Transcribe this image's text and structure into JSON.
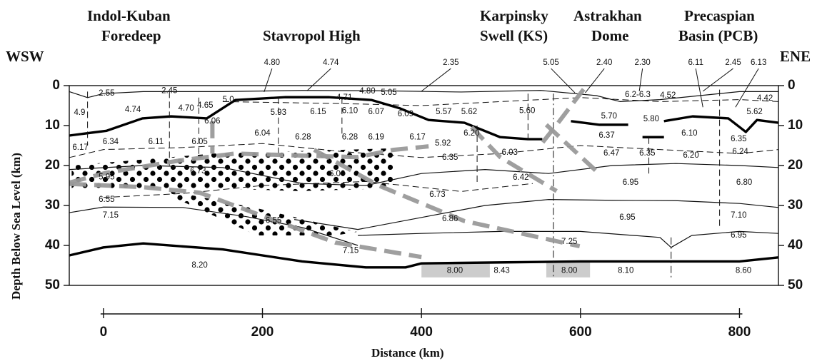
{
  "chart_data": {
    "type": "cross-section",
    "x_label": "Distance (km)",
    "y_label": "Depth Below Sea Level (km)",
    "left_label": "WSW",
    "right_label": "ENE",
    "regions": [
      {
        "lines": [
          "Indol-Kuban",
          "Foredeep"
        ]
      },
      {
        "lines": [
          "Stavropol High"
        ]
      },
      {
        "lines": [
          "Karpinsky",
          "Swell (KS)"
        ]
      },
      {
        "lines": [
          "Astrakhan",
          "Dome"
        ]
      },
      {
        "lines": [
          "Precaspian",
          "Basin (PCB)"
        ]
      }
    ],
    "xlim": [
      -43,
      849
    ],
    "ylim": [
      0,
      50
    ],
    "xticks": [
      0,
      200,
      400,
      600,
      800
    ],
    "yticks": [
      0,
      10,
      20,
      30,
      40,
      50
    ],
    "y_inverted": true,
    "right_axis": true,
    "velocity_labels": [
      {
        "text": "2.55",
        "x": 4,
        "y": 2.0
      },
      {
        "text": "2.45",
        "x": 83,
        "y": 1.3
      },
      {
        "text": "4.80",
        "x": 332,
        "y": 1.4
      },
      {
        "text": "4.71",
        "x": 303,
        "y": 3.0
      },
      {
        "text": "5.05",
        "x": 359,
        "y": 1.8
      },
      {
        "text": "6.2-6.3",
        "x": 672,
        "y": 2.3
      },
      {
        "text": "4.52",
        "x": 710,
        "y": 2.5
      },
      {
        "text": "4.42",
        "x": 832,
        "y": 3.2
      },
      {
        "text": "4.9",
        "x": -30,
        "y": 6.8
      },
      {
        "text": "4.74",
        "x": 37,
        "y": 6.1
      },
      {
        "text": "4.70",
        "x": 104,
        "y": 5.7
      },
      {
        "text": "4.65",
        "x": 128,
        "y": 5.0
      },
      {
        "text": "5.0",
        "x": 157,
        "y": 3.6
      },
      {
        "text": "5.93",
        "x": 220,
        "y": 6.8
      },
      {
        "text": "6.15",
        "x": 270,
        "y": 6.6
      },
      {
        "text": "6.10",
        "x": 310,
        "y": 6.3
      },
      {
        "text": "6.07",
        "x": 343,
        "y": 6.6
      },
      {
        "text": "6.09",
        "x": 380,
        "y": 7.1
      },
      {
        "text": "5.57",
        "x": 428,
        "y": 6.6
      },
      {
        "text": "5.62",
        "x": 460,
        "y": 6.6
      },
      {
        "text": "5.60",
        "x": 533,
        "y": 6.3
      },
      {
        "text": "5.70",
        "x": 636,
        "y": 7.7
      },
      {
        "text": "5.80",
        "x": 689,
        "y": 8.4
      },
      {
        "text": "5.62",
        "x": 819,
        "y": 6.6
      },
      {
        "text": "6.06",
        "x": 137,
        "y": 8.9
      },
      {
        "text": "6.17",
        "x": -29,
        "y": 15.5
      },
      {
        "text": "6.34",
        "x": 9,
        "y": 14.1
      },
      {
        "text": "6.11",
        "x": 66,
        "y": 14.1
      },
      {
        "text": "6.05",
        "x": 121,
        "y": 14.1
      },
      {
        "text": "6.04",
        "x": 200,
        "y": 12.0
      },
      {
        "text": "6.28",
        "x": 251,
        "y": 12.9
      },
      {
        "text": "6.28",
        "x": 310,
        "y": 12.9
      },
      {
        "text": "6.19",
        "x": 343,
        "y": 12.9
      },
      {
        "text": "6.17",
        "x": 395,
        "y": 12.9
      },
      {
        "text": "5.92",
        "x": 427,
        "y": 14.5
      },
      {
        "text": "6.20",
        "x": 463,
        "y": 12.0
      },
      {
        "text": "6.03",
        "x": 511,
        "y": 16.8
      },
      {
        "text": "6.35",
        "x": 436,
        "y": 18.0
      },
      {
        "text": "6.37",
        "x": 633,
        "y": 12.5
      },
      {
        "text": "6.10",
        "x": 737,
        "y": 12.0
      },
      {
        "text": "6.35",
        "x": 799,
        "y": 13.4
      },
      {
        "text": "6.24",
        "x": 801,
        "y": 16.6
      },
      {
        "text": "6.47",
        "x": 639,
        "y": 17.0
      },
      {
        "text": "6.35",
        "x": 684,
        "y": 17.0
      },
      {
        "text": "6.20",
        "x": 739,
        "y": 17.5
      },
      {
        "text": "5.95",
        "x": 4,
        "y": 22.9
      },
      {
        "text": "6.73",
        "x": 119,
        "y": 21.4
      },
      {
        "text": "6.00",
        "x": 294,
        "y": 22.1
      },
      {
        "text": "6.42",
        "x": 525,
        "y": 23.0
      },
      {
        "text": "6.95",
        "x": 663,
        "y": 24.3
      },
      {
        "text": "6.80",
        "x": 806,
        "y": 24.3
      },
      {
        "text": "6.73",
        "x": 420,
        "y": 27.3
      },
      {
        "text": "6.55",
        "x": 4,
        "y": 28.6
      },
      {
        "text": "7.15",
        "x": 9,
        "y": 32.5
      },
      {
        "text": "6.55",
        "x": 214,
        "y": 33.8
      },
      {
        "text": "6.86",
        "x": 436,
        "y": 33.4
      },
      {
        "text": "6.95",
        "x": 659,
        "y": 33.0
      },
      {
        "text": "7.10",
        "x": 799,
        "y": 32.5
      },
      {
        "text": "6.95",
        "x": 799,
        "y": 37.5
      },
      {
        "text": "7.25",
        "x": 586,
        "y": 39.1
      },
      {
        "text": "7.15",
        "x": 311,
        "y": 41.3
      },
      {
        "text": "8.20",
        "x": 121,
        "y": 45.0
      },
      {
        "text": "8.00",
        "x": 442,
        "y": 46.3
      },
      {
        "text": "8.43",
        "x": 501,
        "y": 46.3
      },
      {
        "text": "8.00",
        "x": 586,
        "y": 46.3
      },
      {
        "text": "8.10",
        "x": 657,
        "y": 46.3
      },
      {
        "text": "8.60",
        "x": 805,
        "y": 46.3
      }
    ],
    "callouts": [
      {
        "text": "4.80",
        "x": 212,
        "y": -5.7,
        "to_x": 202,
        "to_y": 1.6
      },
      {
        "text": "4.74",
        "x": 286,
        "y": -5.7,
        "to_x": 256,
        "to_y": 1.3
      },
      {
        "text": "2.35",
        "x": 437,
        "y": -5.7,
        "to_x": 400,
        "to_y": 1.4
      },
      {
        "text": "5.05",
        "x": 563,
        "y": -5.7,
        "to_x": 593,
        "to_y": 1.8
      },
      {
        "text": "2.40",
        "x": 630,
        "y": -5.7,
        "to_x": 606,
        "to_y": 1.8
      },
      {
        "text": "2.30",
        "x": 678,
        "y": -5.7,
        "to_x": 674,
        "to_y": 1.4
      },
      {
        "text": "6.11",
        "x": 745,
        "y": -5.7,
        "to_x": 754,
        "to_y": 5.4
      },
      {
        "text": "2.45",
        "x": 792,
        "y": -5.7,
        "to_x": 754,
        "to_y": 1.4
      },
      {
        "text": "6.13",
        "x": 824,
        "y": -5.7,
        "to_x": 795,
        "to_y": 5.4
      }
    ],
    "boundaries": [
      {
        "style": "thin",
        "x": [
          -43,
          -20,
          0,
          50,
          150,
          250,
          350,
          450,
          550,
          620,
          650,
          700,
          800,
          849
        ],
        "y": [
          1.5,
          3,
          2,
          1.5,
          1.5,
          1.2,
          1.3,
          1.6,
          1.2,
          2.5,
          4,
          3.5,
          1.5,
          1.5
        ]
      },
      {
        "style": "dashed",
        "x": [
          150,
          300,
          400,
          500,
          600,
          700,
          800,
          849
        ],
        "y": [
          4,
          4.5,
          5,
          4,
          3,
          4,
          3.5,
          4
        ]
      },
      {
        "style": "thick",
        "x": [
          -43,
          4,
          49,
          85,
          130,
          166,
          229,
          283,
          337,
          373,
          409,
          454,
          499,
          534,
          552,
          null,
          588,
          624,
          660,
          null,
          678,
          705,
          null,
          705,
          741,
          786,
          808,
          822,
          849
        ],
        "y": [
          12.5,
          11.3,
          8.2,
          7.7,
          8.2,
          3.6,
          2.9,
          2.9,
          3.6,
          5.7,
          8.6,
          9.3,
          12.9,
          13.4,
          13.4,
          null,
          8.9,
          9.8,
          9.8,
          null,
          12.9,
          12.9,
          null,
          8.9,
          7.7,
          8.2,
          11.6,
          8.6,
          9.3
        ]
      },
      {
        "style": "dashed",
        "x": [
          -43,
          0,
          100,
          200,
          300,
          400,
          500,
          600,
          700,
          800,
          849
        ],
        "y": [
          18,
          16,
          15.5,
          14.5,
          16.5,
          18,
          17,
          15,
          16,
          17,
          16
        ]
      },
      {
        "style": "thin",
        "x": [
          -43,
          50,
          150,
          250,
          330,
          400,
          480,
          560,
          640,
          720,
          800,
          849
        ],
        "y": [
          21,
          20,
          20.5,
          24.5,
          25,
          22,
          21,
          22,
          20,
          19.5,
          20,
          20.5
        ]
      },
      {
        "style": "dashed",
        "x": [
          0,
          100,
          200,
          330,
          450,
          540
        ],
        "y": [
          28,
          27,
          25,
          24,
          26.5,
          24.5
        ]
      },
      {
        "style": "thin",
        "x": [
          -43,
          0,
          100,
          180,
          250,
          320
        ],
        "y": [
          31.8,
          30.4,
          30.5,
          32.8,
          35.5,
          40
        ]
      },
      {
        "style": "thin",
        "x": [
          240,
          320,
          400,
          480,
          560,
          640,
          720,
          800,
          849
        ],
        "y": [
          33.5,
          36,
          33,
          30,
          28.5,
          28.7,
          28.8,
          29.5,
          30.5
        ]
      },
      {
        "style": "thin",
        "x": [
          320,
          400,
          500,
          600,
          700,
          714,
          740,
          800,
          849
        ],
        "y": [
          37.5,
          37,
          36.5,
          36.5,
          38,
          40.5,
          37.5,
          36.5,
          37
        ]
      },
      {
        "style": "thick",
        "x": [
          -43,
          0,
          50,
          150,
          250,
          330,
          380,
          400,
          600,
          800,
          849
        ],
        "y": [
          42.5,
          40.5,
          39.5,
          41,
          44,
          45.5,
          45.5,
          44.5,
          44,
          44,
          43
        ]
      },
      {
        "style": "dashed",
        "x": [
          -20,
          -20
        ],
        "y": [
          1.5,
          15
        ]
      },
      {
        "style": "dashed",
        "x": [
          83,
          83
        ],
        "y": [
          1.5,
          20
        ]
      },
      {
        "style": "dashed",
        "x": [
          120,
          120
        ],
        "y": [
          3,
          18
        ]
      },
      {
        "style": "dashed",
        "x": [
          220,
          220
        ],
        "y": [
          3,
          17
        ]
      },
      {
        "style": "dashed",
        "x": [
          300,
          300
        ],
        "y": [
          3,
          12
        ]
      },
      {
        "style": "dashed",
        "x": [
          470,
          470
        ],
        "y": [
          10,
          25
        ]
      },
      {
        "style": "dashed",
        "x": [
          534,
          534
        ],
        "y": [
          2,
          14
        ]
      },
      {
        "style": "dashdot",
        "x": [
          566,
          566
        ],
        "y": [
          2,
          48
        ]
      },
      {
        "style": "dashed",
        "x": [
          686,
          686
        ],
        "y": [
          13,
          22
        ]
      },
      {
        "style": "dashdot",
        "x": [
          714,
          714
        ],
        "y": [
          38,
          48
        ]
      },
      {
        "style": "dashed",
        "x": [
          775,
          775
        ],
        "y": [
          1,
          36
        ]
      },
      {
        "style": "gray",
        "x": [
          -43,
          4,
          94,
          166,
          247,
          319,
          364,
          409
        ],
        "y": [
          24.3,
          21.8,
          18.8,
          17,
          17.5,
          17.9,
          16.1,
          15.2
        ]
      },
      {
        "style": "gray",
        "x": [
          -43,
          49,
          121,
          193,
          292,
          400
        ],
        "y": [
          24.6,
          25.4,
          26.8,
          32.1,
          39.3,
          42.9
        ]
      },
      {
        "style": "gray",
        "x": [
          265,
          346,
          454,
          599
        ],
        "y": [
          16.1,
          25,
          33.9,
          40.2
        ]
      },
      {
        "style": "gray",
        "x": [
          463,
          499,
          570
        ],
        "y": [
          10.4,
          17.9,
          26.4
        ]
      },
      {
        "style": "gray",
        "x": [
          604,
          570,
          552
        ],
        "y": [
          0.9,
          9.8,
          14.3
        ]
      },
      {
        "style": "gray",
        "x": [
          557,
          620
        ],
        "y": [
          9.8,
          21.4
        ]
      },
      {
        "style": "gray",
        "x": [
          137,
          137
        ],
        "y": [
          8.9,
          17
        ]
      }
    ],
    "dotted_regions": [
      {
        "x": [
          -40,
          139,
          364,
          364,
          247,
          139,
          49,
          -40
        ],
        "y": [
          20,
          17,
          15.7,
          25.7,
          26.4,
          25.7,
          25.7,
          25.7
        ]
      },
      {
        "x": [
          85,
          193,
          319,
          292,
          193,
          85
        ],
        "y": [
          26.4,
          30.7,
          36.6,
          37.5,
          37.5,
          27.7
        ]
      }
    ],
    "shaded_blocks": [
      {
        "x": [
          400,
          486
        ],
        "y": [
          44.4,
          48
        ],
        "color": "#cccccc"
      },
      {
        "x": [
          557,
          612
        ],
        "y": [
          44.1,
          48
        ],
        "color": "#cccccc"
      }
    ]
  }
}
